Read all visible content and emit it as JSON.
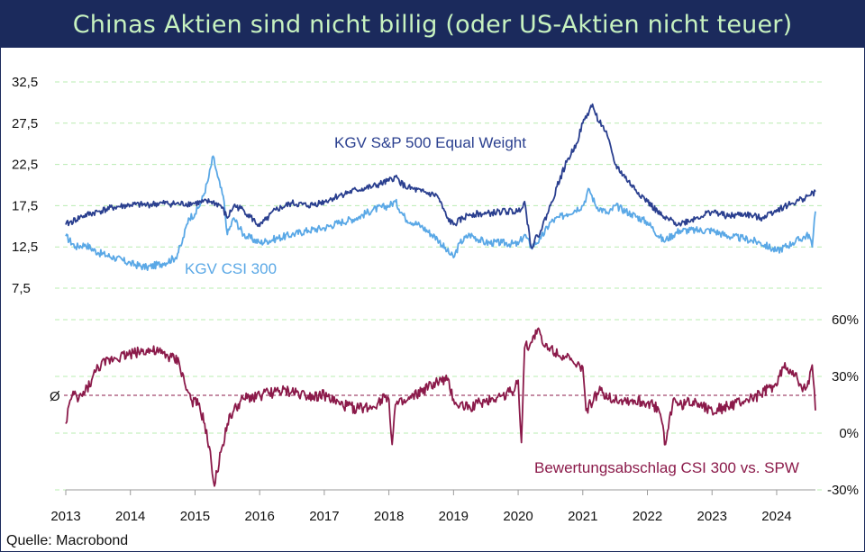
{
  "title": "Chinas Aktien sind nicht billig (oder US-Aktien nicht teuer)",
  "source": "Quelle: Macrobond",
  "colors": {
    "header_bg": "#1b2a5c",
    "header_text": "#c7f2c0",
    "spw": "#2a3f8f",
    "csi": "#5aa8e6",
    "discount": "#8b1a4a",
    "grid": "#b8ecb0"
  },
  "chart_data": [
    {
      "type": "line",
      "ylim": [
        7.5,
        32.5
      ],
      "yticks": [
        "7,5",
        "12,5",
        "17,5",
        "22,5",
        "27,5",
        "32,5"
      ],
      "ytick_values": [
        7.5,
        12.5,
        17.5,
        22.5,
        27.5,
        32.5
      ],
      "grid": true,
      "series": [
        {
          "name": "KGV S&P 500 Equal Weight",
          "x": [
            2013.0,
            2013.25,
            2013.5,
            2013.75,
            2014.0,
            2014.25,
            2014.5,
            2014.75,
            2015.0,
            2015.25,
            2015.4,
            2015.5,
            2015.6,
            2015.75,
            2016.0,
            2016.1,
            2016.25,
            2016.5,
            2016.75,
            2017.0,
            2017.25,
            2017.5,
            2017.75,
            2018.0,
            2018.1,
            2018.25,
            2018.5,
            2018.75,
            2018.9,
            2019.0,
            2019.25,
            2019.5,
            2019.75,
            2020.0,
            2020.1,
            2020.2,
            2020.35,
            2020.5,
            2020.6,
            2020.75,
            2020.9,
            2021.0,
            2021.1,
            2021.15,
            2021.2,
            2021.3,
            2021.35,
            2021.45,
            2021.5,
            2021.75,
            2022.0,
            2022.25,
            2022.5,
            2022.75,
            2023.0,
            2023.25,
            2023.5,
            2023.75,
            2024.0,
            2024.25,
            2024.5,
            2024.6
          ],
          "values": [
            15.2,
            16.2,
            16.8,
            17.3,
            17.6,
            17.6,
            17.8,
            17.7,
            17.8,
            18.0,
            17.5,
            16.0,
            17.5,
            17.0,
            15.0,
            15.8,
            17.0,
            17.8,
            17.5,
            18.0,
            18.8,
            19.4,
            19.8,
            20.5,
            21.0,
            19.8,
            19.2,
            18.7,
            16.0,
            15.2,
            16.5,
            16.5,
            16.8,
            16.8,
            18.0,
            12.5,
            14.5,
            17.5,
            19.8,
            22.8,
            25.0,
            27.5,
            29.0,
            29.8,
            28.5,
            27.2,
            26.5,
            24.0,
            22.5,
            20.0,
            18.0,
            16.0,
            15.3,
            16.0,
            16.8,
            16.2,
            16.5,
            16.0,
            17.0,
            17.8,
            18.7,
            19.2
          ]
        },
        {
          "name": "KGV CSI 300",
          "x": [
            2013.0,
            2013.15,
            2013.3,
            2013.5,
            2013.75,
            2014.0,
            2014.25,
            2014.5,
            2014.7,
            2014.8,
            2014.9,
            2015.0,
            2015.1,
            2015.2,
            2015.28,
            2015.35,
            2015.45,
            2015.5,
            2015.6,
            2015.75,
            2016.0,
            2016.1,
            2016.25,
            2016.5,
            2016.75,
            2017.0,
            2017.25,
            2017.5,
            2017.75,
            2018.0,
            2018.1,
            2018.25,
            2018.5,
            2018.75,
            2018.9,
            2019.0,
            2019.1,
            2019.25,
            2019.5,
            2019.75,
            2020.0,
            2020.1,
            2020.2,
            2020.35,
            2020.5,
            2020.75,
            2021.0,
            2021.1,
            2021.2,
            2021.4,
            2021.5,
            2021.75,
            2022.0,
            2022.25,
            2022.5,
            2022.75,
            2023.0,
            2023.25,
            2023.5,
            2023.75,
            2024.0,
            2024.25,
            2024.5,
            2024.55,
            2024.6
          ],
          "values": [
            13.8,
            12.5,
            12.8,
            11.8,
            11.2,
            10.5,
            10.0,
            10.5,
            11.2,
            13.0,
            16.0,
            16.5,
            18.0,
            20.5,
            23.5,
            21.0,
            18.0,
            14.0,
            16.0,
            14.0,
            13.0,
            13.2,
            13.5,
            14.0,
            14.5,
            14.8,
            15.5,
            16.0,
            17.0,
            17.5,
            18.0,
            16.0,
            15.0,
            13.5,
            12.0,
            11.2,
            13.0,
            14.0,
            13.0,
            13.0,
            12.8,
            14.0,
            12.5,
            13.5,
            15.5,
            16.5,
            17.5,
            19.5,
            17.5,
            16.5,
            17.5,
            16.5,
            15.5,
            13.2,
            14.5,
            14.5,
            14.5,
            13.8,
            13.5,
            13.0,
            12.0,
            13.0,
            14.0,
            12.5,
            16.8
          ]
        }
      ]
    },
    {
      "type": "line",
      "ylim": [
        -30,
        60
      ],
      "yticks": [
        "60%",
        "30%",
        "0%",
        "-30%"
      ],
      "ytick_values": [
        60,
        30,
        0,
        -30
      ],
      "grid": true,
      "reference_line": {
        "label": "Ø",
        "value": 20
      },
      "xlim": [
        2013,
        2024.6
      ],
      "xticks": [
        "2013",
        "2014",
        "2015",
        "2016",
        "2017",
        "2018",
        "2019",
        "2020",
        "2021",
        "2022",
        "2023",
        "2024"
      ],
      "xtick_values": [
        2013,
        2014,
        2015,
        2016,
        2017,
        2018,
        2019,
        2020,
        2021,
        2022,
        2023,
        2024
      ],
      "series": [
        {
          "name": "Bewertungsabschlag CSI 300 vs. SPW",
          "x": [
            2013.0,
            2013.05,
            2013.1,
            2013.2,
            2013.3,
            2013.4,
            2013.5,
            2013.75,
            2014.0,
            2014.25,
            2014.5,
            2014.75,
            2014.85,
            2014.95,
            2015.05,
            2015.15,
            2015.25,
            2015.3,
            2015.4,
            2015.5,
            2015.6,
            2015.75,
            2016.0,
            2016.25,
            2016.5,
            2016.75,
            2017.0,
            2017.25,
            2017.5,
            2017.75,
            2017.95,
            2018.0,
            2018.05,
            2018.1,
            2018.25,
            2018.5,
            2018.75,
            2018.9,
            2019.0,
            2019.05,
            2019.25,
            2019.5,
            2019.75,
            2019.9,
            2020.0,
            2020.05,
            2020.1,
            2020.2,
            2020.3,
            2020.4,
            2020.5,
            2020.75,
            2020.9,
            2021.0,
            2021.05,
            2021.25,
            2021.5,
            2021.75,
            2022.0,
            2022.1,
            2022.2,
            2022.28,
            2022.4,
            2022.5,
            2022.75,
            2023.0,
            2023.25,
            2023.5,
            2023.75,
            2023.9,
            2024.0,
            2024.1,
            2024.25,
            2024.4,
            2024.5,
            2024.55,
            2024.6
          ],
          "values": [
            5,
            15,
            20,
            18,
            22,
            28,
            35,
            40,
            42,
            44,
            42,
            38,
            25,
            17,
            15,
            5,
            -15,
            -28,
            -10,
            5,
            12,
            18,
            20,
            22,
            22,
            20,
            20,
            15,
            13,
            14,
            20,
            18,
            -6,
            15,
            16,
            22,
            27,
            28,
            18,
            15,
            14,
            17,
            20,
            22,
            28,
            -5,
            45,
            48,
            55,
            46,
            45,
            40,
            35,
            35,
            12,
            22,
            18,
            17,
            16,
            15,
            10,
            -6,
            18,
            15,
            17,
            12,
            14,
            17,
            20,
            24,
            25,
            35,
            33,
            22,
            26,
            36,
            12
          ]
        }
      ]
    }
  ],
  "labels": {
    "spw": "KGV S&P 500 Equal Weight",
    "csi": "KGV CSI 300",
    "discount": "Bewertungsabschlag CSI 300 vs. SPW",
    "avg": "Ø"
  }
}
